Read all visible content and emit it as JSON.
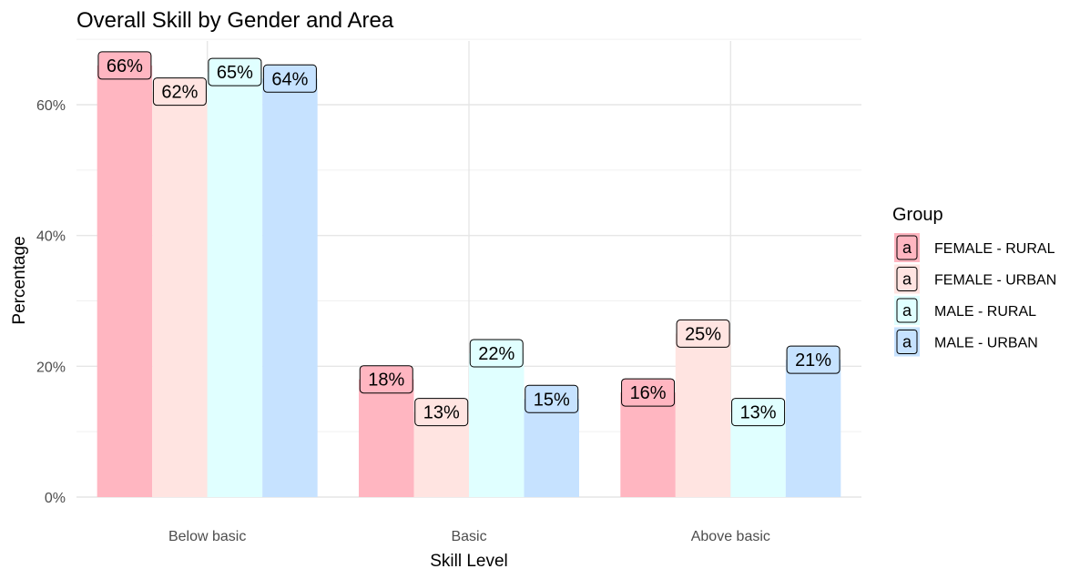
{
  "chart_data": {
    "type": "bar",
    "title": "Overall Skill by Gender and Area",
    "xlabel": "Skill Level",
    "ylabel": "Percentage",
    "ylim": [
      0,
      70
    ],
    "yticks": [
      0,
      20,
      40,
      60
    ],
    "ytick_labels": [
      "0%",
      "20%",
      "40%",
      "60%"
    ],
    "grid": true,
    "legend_title": "Group",
    "legend_position": "right",
    "legend_key_glyph": "a",
    "categories": [
      "Below basic",
      "Basic",
      "Above basic"
    ],
    "series": [
      {
        "name": "FEMALE - RURAL",
        "color": "#FFB6C1",
        "values": [
          66,
          18,
          16
        ],
        "labels": [
          "66%",
          "18%",
          "16%"
        ]
      },
      {
        "name": "FEMALE - URBAN",
        "color": "#FFE4E1",
        "values": [
          62,
          13,
          25
        ],
        "labels": [
          "62%",
          "13%",
          "25%"
        ]
      },
      {
        "name": "MALE - RURAL",
        "color": "#E0FFFF",
        "values": [
          65,
          22,
          13
        ],
        "labels": [
          "65%",
          "22%",
          "13%"
        ]
      },
      {
        "name": "MALE - URBAN",
        "color": "#C6E2FF",
        "values": [
          64,
          15,
          21
        ],
        "labels": [
          "64%",
          "15%",
          "21%"
        ]
      }
    ]
  }
}
